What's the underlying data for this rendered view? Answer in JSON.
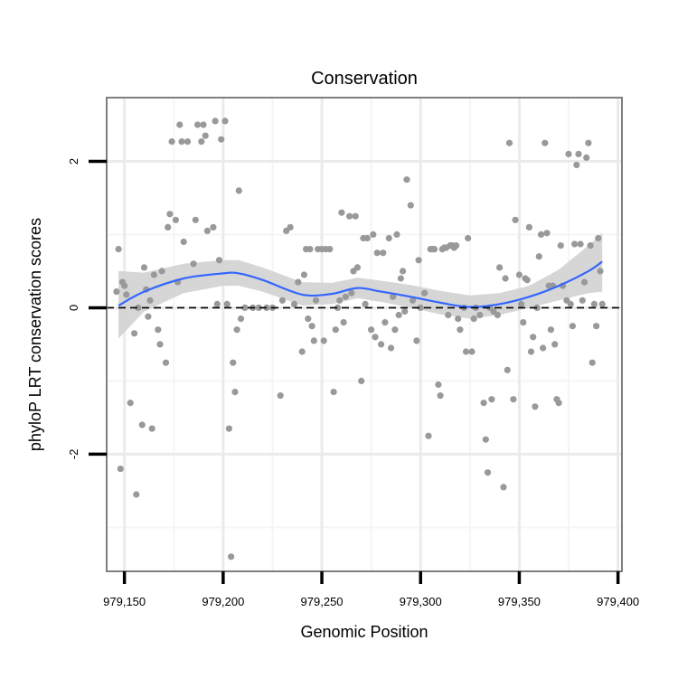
{
  "chart_data": {
    "type": "scatter",
    "title": "Conservation",
    "xlabel": "Genomic Position",
    "ylabel": "phyloP LRT conservation scores",
    "xlim": [
      979141,
      979402
    ],
    "ylim": [
      -3.6,
      2.87
    ],
    "x_ticks": [
      979150,
      979200,
      979250,
      979300,
      979350,
      979400
    ],
    "x_tick_labels": [
      "979,150",
      "979,200",
      "979,250",
      "979,300",
      "979,350",
      "979,400"
    ],
    "y_ticks": [
      -2,
      0,
      2
    ],
    "y_tick_labels": [
      "-2",
      "0",
      "2"
    ],
    "reference_line": {
      "y": 0,
      "style": "dashed",
      "color": "#000000"
    },
    "grid": true,
    "colors": {
      "panel_background": "#ffffff",
      "panel_border": "#7f7f7f",
      "grid_major": "#ebebeb",
      "grid_minor": "#f5f5f5",
      "points": "#999999",
      "smooth_line": "#3366ff",
      "confidence_band": "#d4d4d4"
    },
    "smooth": {
      "x": [
        979147,
        979160,
        979180,
        979200,
        979208,
        979220,
        979240,
        979255,
        979268,
        979280,
        979295,
        979310,
        979325,
        979340,
        979355,
        979370,
        979385,
        979392
      ],
      "y": [
        0.03,
        0.22,
        0.4,
        0.47,
        0.47,
        0.38,
        0.18,
        0.19,
        0.27,
        0.22,
        0.15,
        0.07,
        0.01,
        0.05,
        0.15,
        0.3,
        0.5,
        0.63
      ],
      "lower": [
        -0.42,
        -0.05,
        0.2,
        0.3,
        0.3,
        0.22,
        0.03,
        0.05,
        0.13,
        0.08,
        0.0,
        -0.09,
        -0.15,
        -0.1,
        0.0,
        0.1,
        0.2,
        0.22
      ],
      "upper": [
        0.5,
        0.48,
        0.6,
        0.65,
        0.65,
        0.55,
        0.35,
        0.34,
        0.41,
        0.37,
        0.31,
        0.23,
        0.17,
        0.2,
        0.3,
        0.52,
        0.85,
        1.02
      ]
    },
    "points": [
      {
        "x": 979147,
        "y": 0.8
      },
      {
        "x": 979148,
        "y": -2.2
      },
      {
        "x": 979146,
        "y": 0.22
      },
      {
        "x": 979149,
        "y": 0.35
      },
      {
        "x": 979150,
        "y": 0.3
      },
      {
        "x": 979151,
        "y": 0.18
      },
      {
        "x": 979153,
        "y": -1.3
      },
      {
        "x": 979155,
        "y": -0.35
      },
      {
        "x": 979156,
        "y": -2.55
      },
      {
        "x": 979157,
        "y": 0.0
      },
      {
        "x": 979159,
        "y": -1.6
      },
      {
        "x": 979160,
        "y": 0.55
      },
      {
        "x": 979161,
        "y": 0.25
      },
      {
        "x": 979162,
        "y": -0.12
      },
      {
        "x": 979163,
        "y": 0.1
      },
      {
        "x": 979164,
        "y": -1.65
      },
      {
        "x": 979165,
        "y": 0.45
      },
      {
        "x": 979167,
        "y": -0.3
      },
      {
        "x": 979168,
        "y": -0.5
      },
      {
        "x": 979169,
        "y": 0.5
      },
      {
        "x": 979171,
        "y": -0.75
      },
      {
        "x": 979172,
        "y": 1.1
      },
      {
        "x": 979173,
        "y": 1.28
      },
      {
        "x": 979174,
        "y": 2.27
      },
      {
        "x": 979176,
        "y": 1.2
      },
      {
        "x": 979177,
        "y": 0.35
      },
      {
        "x": 979178,
        "y": 2.5
      },
      {
        "x": 979179,
        "y": 2.27
      },
      {
        "x": 979180,
        "y": 0.9
      },
      {
        "x": 979182,
        "y": 2.27
      },
      {
        "x": 979185,
        "y": 0.6
      },
      {
        "x": 979186,
        "y": 1.2
      },
      {
        "x": 979187,
        "y": 2.5
      },
      {
        "x": 979189,
        "y": 2.27
      },
      {
        "x": 979190,
        "y": 2.5
      },
      {
        "x": 979191,
        "y": 2.35
      },
      {
        "x": 979192,
        "y": 1.05
      },
      {
        "x": 979195,
        "y": 1.1
      },
      {
        "x": 979196,
        "y": 2.55
      },
      {
        "x": 979197,
        "y": 0.05
      },
      {
        "x": 979198,
        "y": 0.65
      },
      {
        "x": 979199,
        "y": 2.3
      },
      {
        "x": 979201,
        "y": 2.55
      },
      {
        "x": 979202,
        "y": 0.05
      },
      {
        "x": 979203,
        "y": -1.65
      },
      {
        "x": 979204,
        "y": -3.4
      },
      {
        "x": 979205,
        "y": -0.75
      },
      {
        "x": 979206,
        "y": -1.15
      },
      {
        "x": 979207,
        "y": -0.3
      },
      {
        "x": 979208,
        "y": 1.6
      },
      {
        "x": 979209,
        "y": -0.15
      },
      {
        "x": 979211,
        "y": 0.0
      },
      {
        "x": 979215,
        "y": 0.0
      },
      {
        "x": 979218,
        "y": 0.0
      },
      {
        "x": 979222,
        "y": 0.0
      },
      {
        "x": 979225,
        "y": 0.0
      },
      {
        "x": 979229,
        "y": -1.2
      },
      {
        "x": 979230,
        "y": 0.1
      },
      {
        "x": 979232,
        "y": 1.05
      },
      {
        "x": 979234,
        "y": 1.1
      },
      {
        "x": 979236,
        "y": 0.05
      },
      {
        "x": 979238,
        "y": 0.35
      },
      {
        "x": 979240,
        "y": -0.6
      },
      {
        "x": 979241,
        "y": 0.45
      },
      {
        "x": 979242,
        "y": 0.8
      },
      {
        "x": 979243,
        "y": -0.15
      },
      {
        "x": 979244,
        "y": 0.8
      },
      {
        "x": 979245,
        "y": -0.25
      },
      {
        "x": 979246,
        "y": -0.45
      },
      {
        "x": 979247,
        "y": 0.1
      },
      {
        "x": 979248,
        "y": 0.8
      },
      {
        "x": 979250,
        "y": 0.8
      },
      {
        "x": 979251,
        "y": -0.45
      },
      {
        "x": 979252,
        "y": 0.8
      },
      {
        "x": 979254,
        "y": 0.8
      },
      {
        "x": 979256,
        "y": -1.15
      },
      {
        "x": 979257,
        "y": -0.3
      },
      {
        "x": 979258,
        "y": 0.0
      },
      {
        "x": 979259,
        "y": 0.1
      },
      {
        "x": 979260,
        "y": 1.3
      },
      {
        "x": 979261,
        "y": -0.2
      },
      {
        "x": 979262,
        "y": 0.15
      },
      {
        "x": 979264,
        "y": 1.25
      },
      {
        "x": 979265,
        "y": 0.2
      },
      {
        "x": 979266,
        "y": 0.5
      },
      {
        "x": 979267,
        "y": 1.25
      },
      {
        "x": 979268,
        "y": 0.55
      },
      {
        "x": 979270,
        "y": -1.0
      },
      {
        "x": 979271,
        "y": 0.95
      },
      {
        "x": 979272,
        "y": 0.05
      },
      {
        "x": 979273,
        "y": 0.95
      },
      {
        "x": 979275,
        "y": -0.3
      },
      {
        "x": 979276,
        "y": 1.0
      },
      {
        "x": 979277,
        "y": -0.4
      },
      {
        "x": 979278,
        "y": 0.75
      },
      {
        "x": 979280,
        "y": -0.5
      },
      {
        "x": 979281,
        "y": 0.75
      },
      {
        "x": 979282,
        "y": -0.2
      },
      {
        "x": 979284,
        "y": 0.95
      },
      {
        "x": 979285,
        "y": -0.55
      },
      {
        "x": 979286,
        "y": 0.15
      },
      {
        "x": 979287,
        "y": -0.3
      },
      {
        "x": 979288,
        "y": 1.0
      },
      {
        "x": 979289,
        "y": -0.1
      },
      {
        "x": 979290,
        "y": 0.4
      },
      {
        "x": 979291,
        "y": 0.5
      },
      {
        "x": 979292,
        "y": -0.05
      },
      {
        "x": 979293,
        "y": 1.75
      },
      {
        "x": 979295,
        "y": 1.4
      },
      {
        "x": 979296,
        "y": 0.1
      },
      {
        "x": 979298,
        "y": -0.45
      },
      {
        "x": 979299,
        "y": 0.65
      },
      {
        "x": 979300,
        "y": 0.0
      },
      {
        "x": 979302,
        "y": 0.2
      },
      {
        "x": 979304,
        "y": -1.75
      },
      {
        "x": 979305,
        "y": 0.8
      },
      {
        "x": 979306,
        "y": 0.8
      },
      {
        "x": 979307,
        "y": 0.8
      },
      {
        "x": 979309,
        "y": -1.05
      },
      {
        "x": 979310,
        "y": -1.2
      },
      {
        "x": 979311,
        "y": 0.8
      },
      {
        "x": 979312,
        "y": 0.82
      },
      {
        "x": 979313,
        "y": 0.82
      },
      {
        "x": 979314,
        "y": -0.1
      },
      {
        "x": 979315,
        "y": 0.85
      },
      {
        "x": 979316,
        "y": 0.85
      },
      {
        "x": 979317,
        "y": 0.82
      },
      {
        "x": 979318,
        "y": 0.85
      },
      {
        "x": 979319,
        "y": -0.15
      },
      {
        "x": 979320,
        "y": -0.3
      },
      {
        "x": 979322,
        "y": 0.0
      },
      {
        "x": 979323,
        "y": -0.6
      },
      {
        "x": 979324,
        "y": 0.95
      },
      {
        "x": 979326,
        "y": -0.6
      },
      {
        "x": 979327,
        "y": -0.15
      },
      {
        "x": 979328,
        "y": 0.0
      },
      {
        "x": 979330,
        "y": -0.1
      },
      {
        "x": 979332,
        "y": -1.3
      },
      {
        "x": 979333,
        "y": -1.8
      },
      {
        "x": 979334,
        "y": -2.25
      },
      {
        "x": 979335,
        "y": 0.0
      },
      {
        "x": 979336,
        "y": -1.25
      },
      {
        "x": 979337,
        "y": -0.05
      },
      {
        "x": 979339,
        "y": -0.1
      },
      {
        "x": 979340,
        "y": 0.55
      },
      {
        "x": 979342,
        "y": -2.45
      },
      {
        "x": 979343,
        "y": 0.4
      },
      {
        "x": 979344,
        "y": -0.85
      },
      {
        "x": 979345,
        "y": 2.25
      },
      {
        "x": 979347,
        "y": -1.25
      },
      {
        "x": 979348,
        "y": 1.2
      },
      {
        "x": 979350,
        "y": 0.45
      },
      {
        "x": 979351,
        "y": 0.05
      },
      {
        "x": 979352,
        "y": -0.2
      },
      {
        "x": 979353,
        "y": 0.4
      },
      {
        "x": 979354,
        "y": 0.38
      },
      {
        "x": 979355,
        "y": 1.1
      },
      {
        "x": 979356,
        "y": -0.6
      },
      {
        "x": 979357,
        "y": -0.4
      },
      {
        "x": 979358,
        "y": -1.35
      },
      {
        "x": 979359,
        "y": 0.0
      },
      {
        "x": 979360,
        "y": 0.7
      },
      {
        "x": 979361,
        "y": 1.0
      },
      {
        "x": 979362,
        "y": -0.55
      },
      {
        "x": 979363,
        "y": 2.25
      },
      {
        "x": 979364,
        "y": 1.02
      },
      {
        "x": 979365,
        "y": 0.3
      },
      {
        "x": 979366,
        "y": -0.3
      },
      {
        "x": 979367,
        "y": 0.3
      },
      {
        "x": 979368,
        "y": -0.5
      },
      {
        "x": 979369,
        "y": -1.25
      },
      {
        "x": 979370,
        "y": -1.3
      },
      {
        "x": 979371,
        "y": 0.85
      },
      {
        "x": 979372,
        "y": 0.3
      },
      {
        "x": 979374,
        "y": 0.1
      },
      {
        "x": 979375,
        "y": 2.1
      },
      {
        "x": 979376,
        "y": 0.05
      },
      {
        "x": 979377,
        "y": -0.25
      },
      {
        "x": 979378,
        "y": 0.87
      },
      {
        "x": 979379,
        "y": 1.95
      },
      {
        "x": 979380,
        "y": 2.1
      },
      {
        "x": 979381,
        "y": 0.87
      },
      {
        "x": 979382,
        "y": 0.1
      },
      {
        "x": 979383,
        "y": 0.35
      },
      {
        "x": 979384,
        "y": 2.05
      },
      {
        "x": 979385,
        "y": 2.25
      },
      {
        "x": 979386,
        "y": 0.85
      },
      {
        "x": 979387,
        "y": -0.75
      },
      {
        "x": 979388,
        "y": 0.05
      },
      {
        "x": 979389,
        "y": -0.25
      },
      {
        "x": 979390,
        "y": 0.95
      },
      {
        "x": 979391,
        "y": 0.5
      },
      {
        "x": 979392,
        "y": 0.05
      }
    ]
  }
}
